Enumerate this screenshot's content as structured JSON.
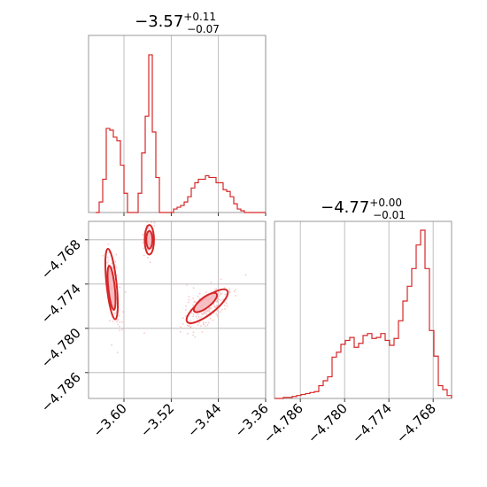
{
  "chart_data": {
    "type": "corner",
    "color": "#d62728",
    "fill_color": "#f4b6bb",
    "scatter_color": "#f7c7cc",
    "grid": true,
    "panels": [
      {
        "kind": "histogram",
        "parameter": "x",
        "title": {
          "main": "−3.57",
          "upper": "+0.11",
          "lower": "−0.07"
        },
        "xlim": [
          -3.66,
          -3.36
        ],
        "ylim": [
          0,
          1.0
        ],
        "bins": [
          [
            -3.648,
            0.0
          ],
          [
            -3.642,
            0.06
          ],
          [
            -3.636,
            0.19
          ],
          [
            -3.63,
            0.48
          ],
          [
            -3.624,
            0.47
          ],
          [
            -3.618,
            0.43
          ],
          [
            -3.612,
            0.41
          ],
          [
            -3.606,
            0.27
          ],
          [
            -3.6,
            0.11
          ],
          [
            -3.594,
            0.0
          ],
          [
            -3.588,
            0.0
          ],
          [
            -3.582,
            0.0
          ],
          [
            -3.576,
            0.11
          ],
          [
            -3.57,
            0.34
          ],
          [
            -3.564,
            0.55
          ],
          [
            -3.558,
            0.9
          ],
          [
            -3.552,
            0.46
          ],
          [
            -3.546,
            0.2
          ],
          [
            -3.54,
            0.0
          ],
          [
            -3.534,
            0.0
          ],
          [
            -3.528,
            0.0
          ],
          [
            -3.522,
            0.0
          ],
          [
            -3.516,
            0.02
          ],
          [
            -3.51,
            0.03
          ],
          [
            -3.504,
            0.04
          ],
          [
            -3.498,
            0.06
          ],
          [
            -3.492,
            0.09
          ],
          [
            -3.486,
            0.14
          ],
          [
            -3.48,
            0.17
          ],
          [
            -3.474,
            0.19
          ],
          [
            -3.468,
            0.19
          ],
          [
            -3.462,
            0.21
          ],
          [
            -3.456,
            0.2
          ],
          [
            -3.45,
            0.2
          ],
          [
            -3.444,
            0.17
          ],
          [
            -3.438,
            0.17
          ],
          [
            -3.432,
            0.13
          ],
          [
            -3.426,
            0.12
          ],
          [
            -3.42,
            0.09
          ],
          [
            -3.414,
            0.05
          ],
          [
            -3.408,
            0.02
          ],
          [
            -3.402,
            0.01
          ],
          [
            -3.396,
            0.0
          ],
          [
            -3.39,
            0.0
          ]
        ],
        "bin_width": 0.006
      },
      {
        "kind": "histogram",
        "parameter": "y",
        "title": {
          "main": "−4.77",
          "upper": "+0.00",
          "lower": "−0.01"
        },
        "xlim": [
          -4.7895,
          -4.7655
        ],
        "ylim": [
          0,
          1.0
        ],
        "xticks": [
          -4.786,
          -4.78,
          -4.774,
          -4.768
        ],
        "xticklabels": [
          "−4.786",
          "−4.780",
          "−4.774",
          "−4.768"
        ],
        "bins": [
          [
            -4.7895,
            0.0
          ],
          [
            -4.7889,
            0.0
          ],
          [
            -4.7883,
            0.01
          ],
          [
            -4.7877,
            0.01
          ],
          [
            -4.7871,
            0.02
          ],
          [
            -4.7865,
            0.03
          ],
          [
            -4.7859,
            0.04
          ],
          [
            -4.7853,
            0.05
          ],
          [
            -4.7847,
            0.06
          ],
          [
            -4.7841,
            0.07
          ],
          [
            -4.7835,
            0.13
          ],
          [
            -4.7829,
            0.18
          ],
          [
            -4.7823,
            0.22
          ],
          [
            -4.7817,
            0.42
          ],
          [
            -4.7811,
            0.47
          ],
          [
            -4.7805,
            0.55
          ],
          [
            -4.7799,
            0.59
          ],
          [
            -4.7793,
            0.62
          ],
          [
            -4.7787,
            0.52
          ],
          [
            -4.7781,
            0.56
          ],
          [
            -4.7775,
            0.64
          ],
          [
            -4.7769,
            0.66
          ],
          [
            -4.7763,
            0.61
          ],
          [
            -4.7757,
            0.62
          ],
          [
            -4.7751,
            0.66
          ],
          [
            -4.7745,
            0.59
          ],
          [
            -4.7739,
            0.54
          ],
          [
            -4.7733,
            0.61
          ],
          [
            -4.7727,
            0.79
          ],
          [
            -4.7721,
            0.99
          ],
          [
            -4.7715,
            1.14
          ],
          [
            -4.7709,
            1.32
          ],
          [
            -4.7703,
            1.56
          ],
          [
            -4.7697,
            1.71
          ],
          [
            -4.7691,
            1.32
          ],
          [
            -4.7685,
            0.69
          ],
          [
            -4.7679,
            0.43
          ],
          [
            -4.7673,
            0.13
          ],
          [
            -4.7667,
            0.09
          ],
          [
            -4.7661,
            0.03
          ]
        ],
        "bin_width": 0.0006
      },
      {
        "kind": "scatter-contour",
        "xlim": [
          -3.66,
          -3.36
        ],
        "ylim": [
          -4.7895,
          -4.7655
        ],
        "xticks": [
          -3.6,
          -3.52,
          -3.44,
          -3.36
        ],
        "xticklabels": [
          "−3.60",
          "−3.52",
          "−3.44",
          "−3.36"
        ],
        "yticks": [
          -4.768,
          -4.774,
          -4.78,
          -4.786
        ],
        "yticklabels": [
          "−4.768",
          "−4.774",
          "−4.780",
          "−4.786"
        ],
        "clusters": [
          {
            "cx": -3.62,
            "cy": -4.7742,
            "rx": 0.01,
            "ry": 0.005,
            "angle": -6,
            "n": 140
          },
          {
            "cx": -3.557,
            "cy": -4.768,
            "rx": 0.009,
            "ry": 0.0018,
            "angle": 0,
            "n": 90
          },
          {
            "cx": -3.458,
            "cy": -4.777,
            "rx": 0.048,
            "ry": 0.0018,
            "angle": -38,
            "n": 220
          }
        ],
        "contours": [
          {
            "cx": -3.621,
            "cy": -4.774,
            "rx": 0.0085,
            "ry": 0.0048,
            "angle": -6,
            "fill": false
          },
          {
            "cx": -3.621,
            "cy": -4.7745,
            "rx": 0.0055,
            "ry": 0.003,
            "angle": -6,
            "fill": true
          },
          {
            "cx": -3.557,
            "cy": -4.768,
            "rx": 0.0078,
            "ry": 0.002,
            "angle": 0,
            "fill": false
          },
          {
            "cx": -3.557,
            "cy": -4.768,
            "rx": 0.0052,
            "ry": 0.0012,
            "angle": 0,
            "fill": true
          },
          {
            "cx": -3.459,
            "cy": -4.777,
            "rx": 0.043,
            "ry": 0.0011,
            "angle": -38,
            "fill": false
          },
          {
            "cx": -3.462,
            "cy": -4.7765,
            "rx": 0.024,
            "ry": 0.0007,
            "angle": -38,
            "fill": true
          }
        ]
      }
    ]
  }
}
